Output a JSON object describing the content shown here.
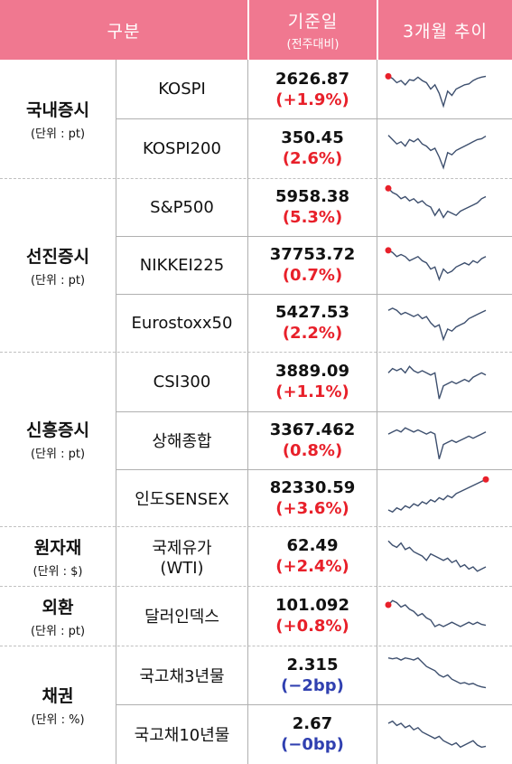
{
  "header": {
    "category": "구분",
    "value_title": "기준일",
    "value_subtitle": "(전주대비)",
    "trend": "3개월 추이"
  },
  "colors": {
    "header_bg": "#f07890",
    "positive": "#e8202a",
    "negative": "#3040b0",
    "spark_line": "#3d4f6e",
    "spark_dot": "#e8202a"
  },
  "groups": [
    {
      "name": "국내증시",
      "unit": "(단위 : pt)"
    },
    {
      "name": "선진증시",
      "unit": "(단위 : pt)"
    },
    {
      "name": "신흥증시",
      "unit": "(단위 : pt)"
    },
    {
      "name": "원자재",
      "unit": "(단위 : $)"
    },
    {
      "name": "외환",
      "unit": "(단위 : pt)"
    },
    {
      "name": "채권",
      "unit": "(단위 : %)"
    }
  ],
  "rows": [
    {
      "name": "KOSPI",
      "name2": "",
      "value": "2626.87",
      "change": "(+1.9%)",
      "sign": "pos",
      "dot": "start"
    },
    {
      "name": "KOSPI200",
      "name2": "",
      "value": "350.45",
      "change": "(2.6%)",
      "sign": "pos",
      "dot": "none"
    },
    {
      "name": "S&P500",
      "name2": "",
      "value": "5958.38",
      "change": "(5.3%)",
      "sign": "pos",
      "dot": "start"
    },
    {
      "name": "NIKKEI225",
      "name2": "",
      "value": "37753.72",
      "change": "(0.7%)",
      "sign": "pos",
      "dot": "start"
    },
    {
      "name": "Eurostoxx50",
      "name2": "",
      "value": "5427.53",
      "change": "(2.2%)",
      "sign": "pos",
      "dot": "none"
    },
    {
      "name": "CSI300",
      "name2": "",
      "value": "3889.09",
      "change": "(+1.1%)",
      "sign": "pos",
      "dot": "none"
    },
    {
      "name": "상해종합",
      "name2": "",
      "value": "3367.462",
      "change": "(0.8%)",
      "sign": "pos",
      "dot": "none"
    },
    {
      "name": "인도SENSEX",
      "name2": "",
      "value": "82330.59",
      "change": "(+3.6%)",
      "sign": "pos",
      "dot": "end"
    },
    {
      "name": "국제유가",
      "name2": "(WTI)",
      "value": "62.49",
      "change": "(+2.4%)",
      "sign": "pos",
      "dot": "none"
    },
    {
      "name": "달러인덱스",
      "name2": "",
      "value": "101.092",
      "change": "(+0.8%)",
      "sign": "pos",
      "dot": "start"
    },
    {
      "name": "국고채3년물",
      "name2": "",
      "value": "2.315",
      "change": "(−2bp)",
      "sign": "neg",
      "dot": "none"
    },
    {
      "name": "국고채10년물",
      "name2": "",
      "value": "2.67",
      "change": "(−0bp)",
      "sign": "neg",
      "dot": "none"
    }
  ]
}
